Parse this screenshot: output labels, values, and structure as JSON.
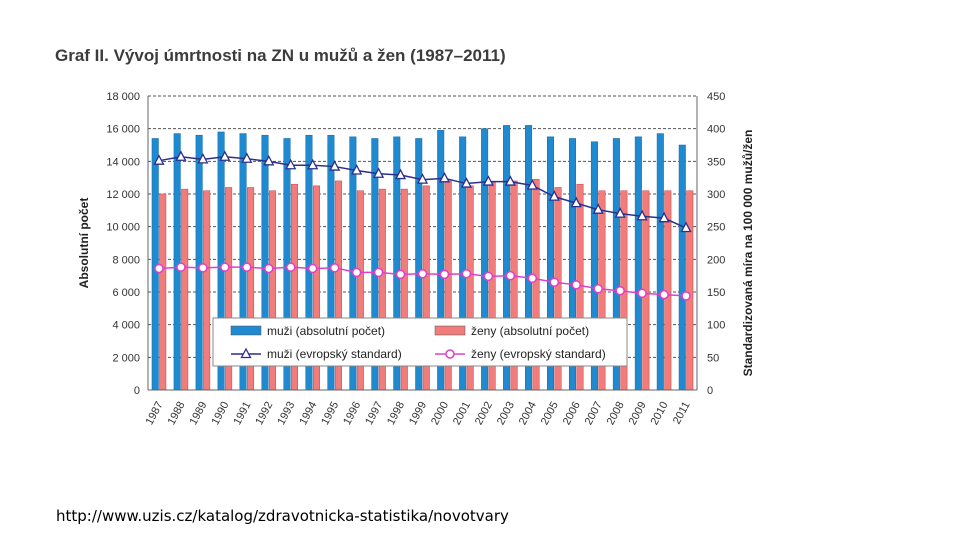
{
  "page": {
    "source_url": "http://www.uzis.cz/katalog/zdravotnicka-statistika/novotvary"
  },
  "chart_data": {
    "type": "bar",
    "title": "Graf II. Vývoj úmrtnosti na ZN u mužů a žen (1987–2011)",
    "categories": [
      "1987",
      "1988",
      "1989",
      "1990",
      "1991",
      "1992",
      "1993",
      "1994",
      "1995",
      "1996",
      "1997",
      "1998",
      "1999",
      "2000",
      "2001",
      "2002",
      "2003",
      "2004",
      "2005",
      "2006",
      "2007",
      "2008",
      "2009",
      "2010",
      "2011"
    ],
    "ylabel_left": "Absolutní počet",
    "ylabel_right": "Standardizovaná míra na 100 000 mužů/žen",
    "ylim_left": [
      0,
      18000
    ],
    "ylim_right": [
      0,
      450
    ],
    "left_ticks": [
      "0",
      "2 000",
      "4 000",
      "6 000",
      "8 000",
      "10 000",
      "12 000",
      "14 000",
      "16 000",
      "18 000"
    ],
    "right_ticks": [
      "0",
      "50",
      "100",
      "150",
      "200",
      "250",
      "300",
      "350",
      "400",
      "450"
    ],
    "grid": "dashed",
    "legend_position": "bottom-center",
    "series": [
      {
        "name": "muži (absolutní počet)",
        "kind": "bar",
        "axis": "left",
        "color": "#1f8ad0",
        "values": [
          15400,
          15700,
          15600,
          15800,
          15700,
          15600,
          15400,
          15600,
          15600,
          15500,
          15400,
          15500,
          15400,
          15900,
          15500,
          16000,
          16200,
          16200,
          15500,
          15400,
          15200,
          15400,
          15500,
          15700,
          15000
        ]
      },
      {
        "name": "ženy (absolutní počet)",
        "kind": "bar",
        "axis": "left",
        "color": "#f07c7c",
        "values": [
          12000,
          12300,
          12200,
          12400,
          12400,
          12200,
          12600,
          12500,
          12800,
          12200,
          12300,
          12300,
          12500,
          12800,
          12500,
          12700,
          12800,
          12900,
          12400,
          12600,
          12200,
          12200,
          12200,
          12200,
          12200
        ]
      },
      {
        "name": "muži (evropský standard)",
        "kind": "line",
        "axis": "right",
        "color": "#2c2f8c",
        "marker": "triangle",
        "values": [
          351,
          357,
          353,
          357,
          354,
          350,
          344,
          344,
          342,
          336,
          331,
          329,
          322,
          324,
          316,
          319,
          319,
          313,
          296,
          286,
          276,
          270,
          266,
          263,
          248
        ]
      },
      {
        "name": "ženy (evropský standard)",
        "kind": "line",
        "axis": "right",
        "color": "#e040c8",
        "marker": "circle",
        "values": [
          186,
          188,
          187,
          188,
          188,
          186,
          188,
          186,
          187,
          180,
          180,
          177,
          178,
          177,
          178,
          174,
          175,
          171,
          165,
          161,
          155,
          152,
          148,
          146,
          144
        ]
      }
    ]
  }
}
